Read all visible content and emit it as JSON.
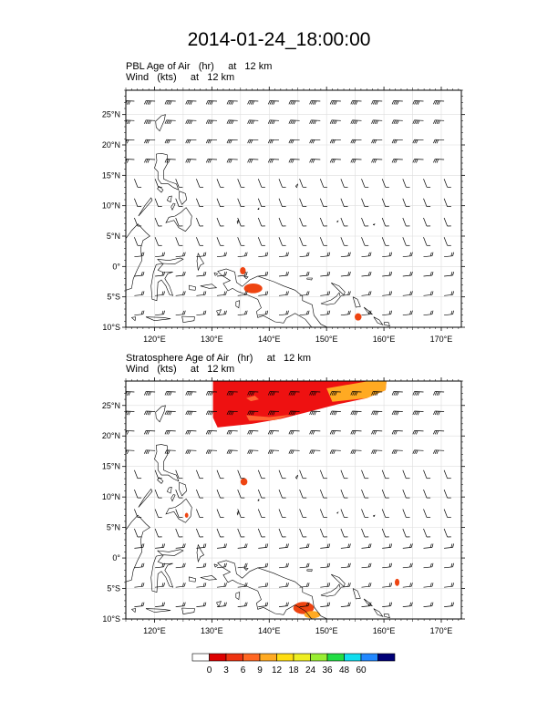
{
  "title": "2014-01-24_18:00:00",
  "panels": [
    {
      "field_label": "PBL Age of Air   (hr)     at   12 km",
      "wind_label": "Wind   (kts)     at   12 km",
      "filled_regions": [
        {
          "name": "pbl-blob-1",
          "lon": 137.2,
          "lat": -3.6,
          "rlon": 1.6,
          "rlat": 0.8,
          "color": "#ee4411"
        },
        {
          "name": "pbl-blob-2",
          "lon": 135.4,
          "lat": -0.7,
          "rlon": 0.5,
          "rlat": 0.6,
          "color": "#ee4411"
        },
        {
          "name": "pbl-blob-3",
          "lon": 155.5,
          "lat": -8.3,
          "rlon": 0.6,
          "rlat": 0.6,
          "color": "#ee4411"
        }
      ]
    },
    {
      "field_label": "Stratosphere Age of Air   (hr)     at   12 km",
      "wind_label": "Wind   (kts)     at   12 km",
      "filled_regions": [
        {
          "name": "strat-blob-1",
          "lon": 135.6,
          "lat": 12.5,
          "rlon": 0.6,
          "rlat": 0.6,
          "color": "#ee4411"
        },
        {
          "name": "strat-blob-2",
          "lon": 125.6,
          "lat": 7.0,
          "rlon": 0.3,
          "rlat": 0.4,
          "color": "#ee4411"
        },
        {
          "name": "strat-blob-3",
          "lon": 146.0,
          "lat": -8.2,
          "rlon": 1.8,
          "rlat": 1.0,
          "color": "#ee4411"
        },
        {
          "name": "strat-blob-4",
          "lon": 147.5,
          "lat": -9.3,
          "rlon": 1.4,
          "rlat": 0.6,
          "color": "#ffaa22"
        },
        {
          "name": "strat-blob-5",
          "lon": 162.3,
          "lat": -4.0,
          "rlon": 0.4,
          "rlat": 0.6,
          "color": "#ee4411"
        }
      ]
    }
  ],
  "axes": {
    "lon_range": [
      115,
      173.5
    ],
    "lat_range": [
      -10,
      29
    ],
    "lon_ticks": [
      "120°E",
      "130°E",
      "140°E",
      "150°E",
      "160°E",
      "170°E"
    ],
    "lon_tick_values": [
      120,
      130,
      140,
      150,
      160,
      170
    ],
    "lat_ticks": [
      "25°N",
      "20°N",
      "15°N",
      "10°N",
      "5°N",
      "0°",
      "5°S",
      "10°S"
    ],
    "lat_tick_values": [
      25,
      20,
      15,
      10,
      5,
      0,
      -5,
      -10
    ]
  },
  "colorbar": {
    "labels": [
      "0",
      "3",
      "6",
      "9",
      "12",
      "18",
      "24",
      "36",
      "48",
      "60"
    ],
    "colors": [
      "#ffffff",
      "#dd0000",
      "#ee3311",
      "#ff6622",
      "#ffaa22",
      "#ffdd11",
      "#eeee22",
      "#99ee33",
      "#22dd44",
      "#11ddee",
      "#2288ff",
      "#000077"
    ]
  },
  "colors": {
    "strat_main": "#ee1111",
    "strat_tongue": "#ff6633",
    "strat_edge": "#ffaa22",
    "coastline": "#000000",
    "grid": "#dddddd"
  }
}
